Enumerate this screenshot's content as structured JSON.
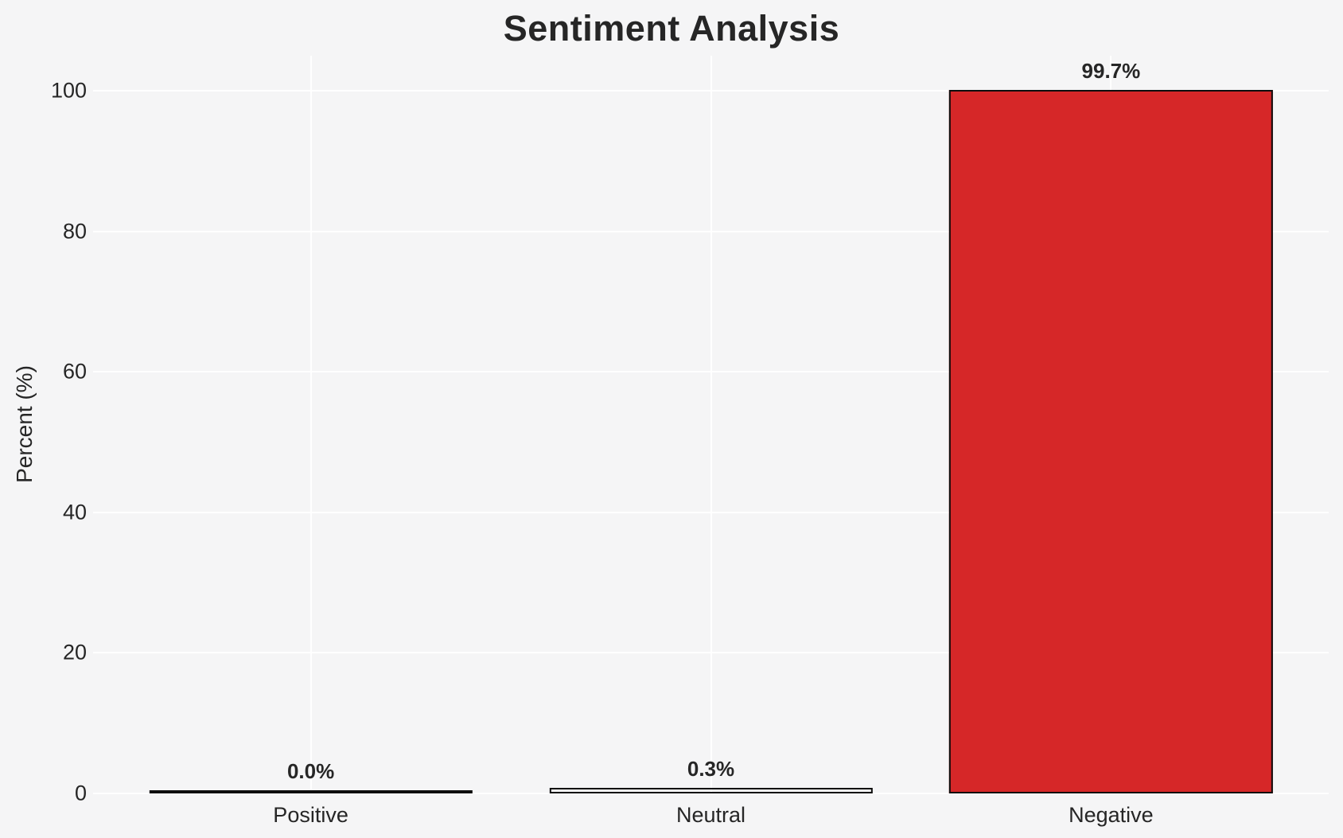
{
  "chart_data": {
    "type": "bar",
    "title": "Sentiment Analysis",
    "ylabel": "Percent (%)",
    "xlabel": "",
    "categories": [
      "Positive",
      "Neutral",
      "Negative"
    ],
    "values": [
      0.0,
      0.3,
      99.7
    ],
    "value_labels": [
      "0.0%",
      "0.3%",
      "99.7%"
    ],
    "bar_colors": [
      null,
      null,
      "#d62728"
    ],
    "bar_edge_color": "#0d0d0d",
    "ylim": [
      0,
      105
    ],
    "yticks": [
      0,
      20,
      40,
      60,
      80,
      100
    ],
    "grid": true,
    "grid_color": "#ffffff",
    "background_color": "#f5f5f6",
    "text_color": "#262626",
    "legend_position": "none"
  }
}
